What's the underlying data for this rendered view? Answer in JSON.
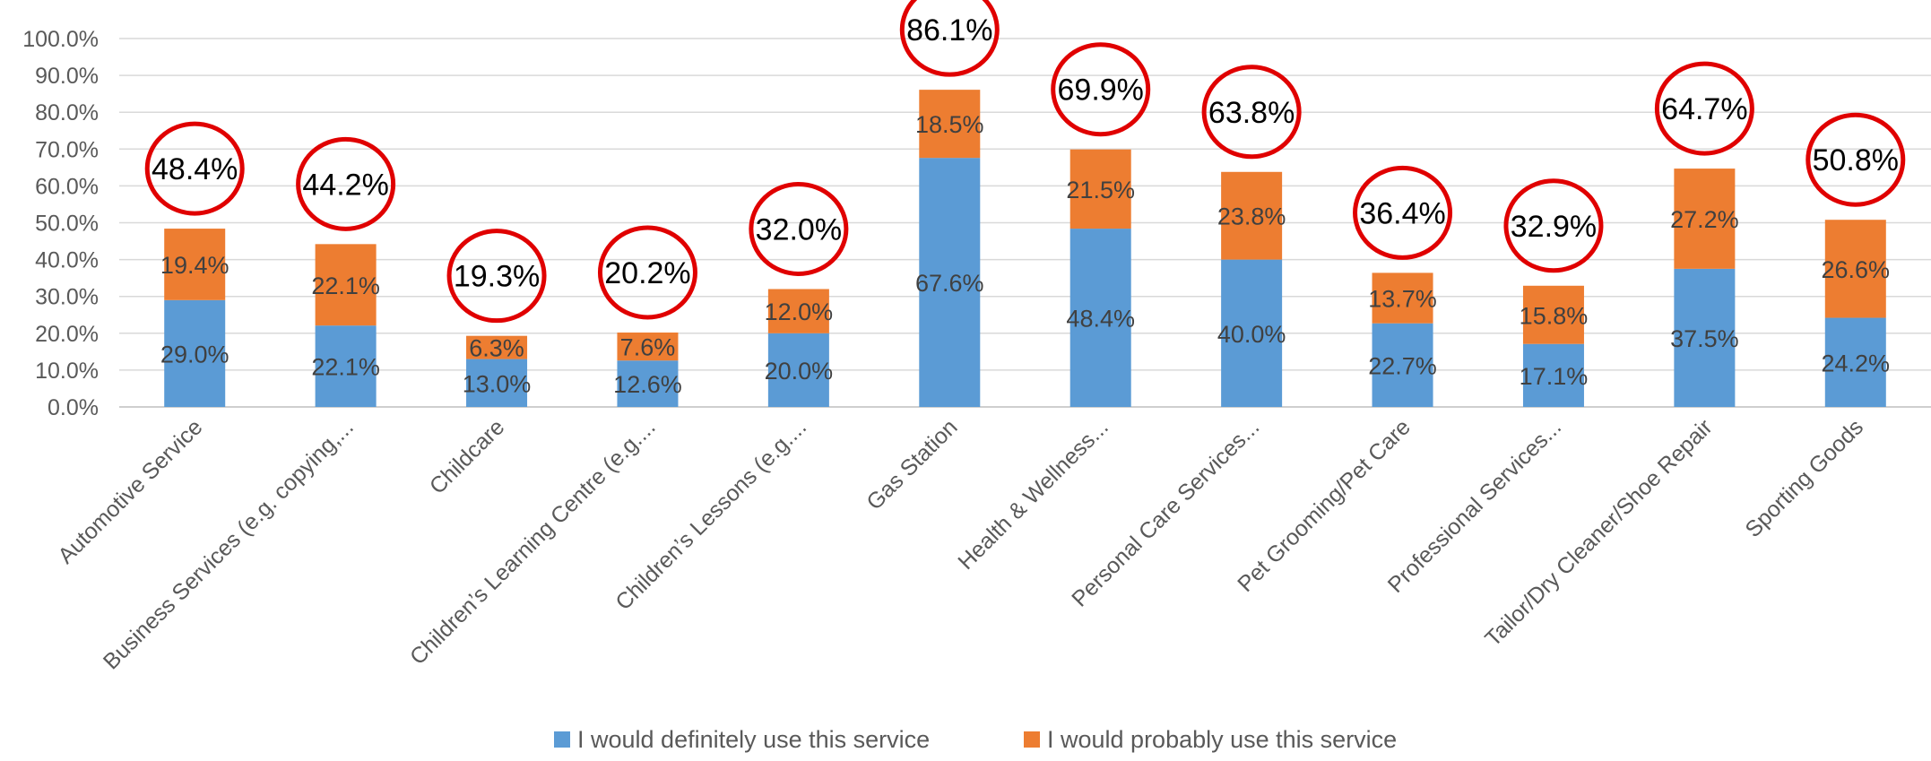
{
  "chart_data": {
    "type": "bar",
    "stacked": true,
    "title": "",
    "xlabel": "",
    "ylabel": "",
    "ylim": [
      0,
      100
    ],
    "yticks": [
      0,
      10,
      20,
      30,
      40,
      50,
      60,
      70,
      80,
      90,
      100
    ],
    "ytick_labels": [
      "0.0%",
      "10.0%",
      "20.0%",
      "30.0%",
      "40.0%",
      "50.0%",
      "60.0%",
      "70.0%",
      "80.0%",
      "90.0%",
      "100.0%"
    ],
    "grid": true,
    "legend_position": "bottom",
    "categories": [
      "Automotive Service",
      "Business Services (e.g. copying,...",
      "Childcare",
      "Children’s Learning Centre (e.g....",
      "Children’s Lessons (e.g....",
      "Gas Station",
      "Health & Wellness...",
      "Personal Care Services...",
      "Pet Grooming/Pet Care",
      "Professional Services...",
      "Tailor/Dry Cleaner/Shoe Repair",
      "Sporting Goods"
    ],
    "series": [
      {
        "name": "I would definitely use this service",
        "color": "#5B9BD5",
        "values": [
          29.0,
          22.1,
          13.0,
          12.6,
          20.0,
          67.6,
          48.4,
          40.0,
          22.7,
          17.1,
          37.5,
          24.2
        ],
        "labels": [
          "29.0%",
          "22.1%",
          "13.0%",
          "12.6%",
          "20.0%",
          "67.6%",
          "48.4%",
          "40.0%",
          "22.7%",
          "17.1%",
          "37.5%",
          "24.2%"
        ]
      },
      {
        "name": "I would probably use this service",
        "color": "#ED7D31",
        "values": [
          19.4,
          22.1,
          6.3,
          7.6,
          12.0,
          18.5,
          21.5,
          23.8,
          13.7,
          15.8,
          27.2,
          26.6
        ],
        "labels": [
          "19.4%",
          "22.1%",
          "6.3%",
          "7.6%",
          "12.0%",
          "18.5%",
          "21.5%",
          "23.8%",
          "13.7%",
          "15.8%",
          "27.2%",
          "26.6%"
        ]
      }
    ],
    "totals": [
      48.4,
      44.2,
      19.3,
      20.2,
      32.0,
      86.1,
      69.9,
      63.8,
      36.4,
      32.9,
      64.7,
      50.8
    ],
    "total_labels": [
      "48.4%",
      "44.2%",
      "19.3%",
      "20.2%",
      "32.0%",
      "86.1%",
      "69.9%",
      "63.8%",
      "36.4%",
      "32.9%",
      "64.7%",
      "50.8%"
    ],
    "annotation_color": "#E00000"
  }
}
